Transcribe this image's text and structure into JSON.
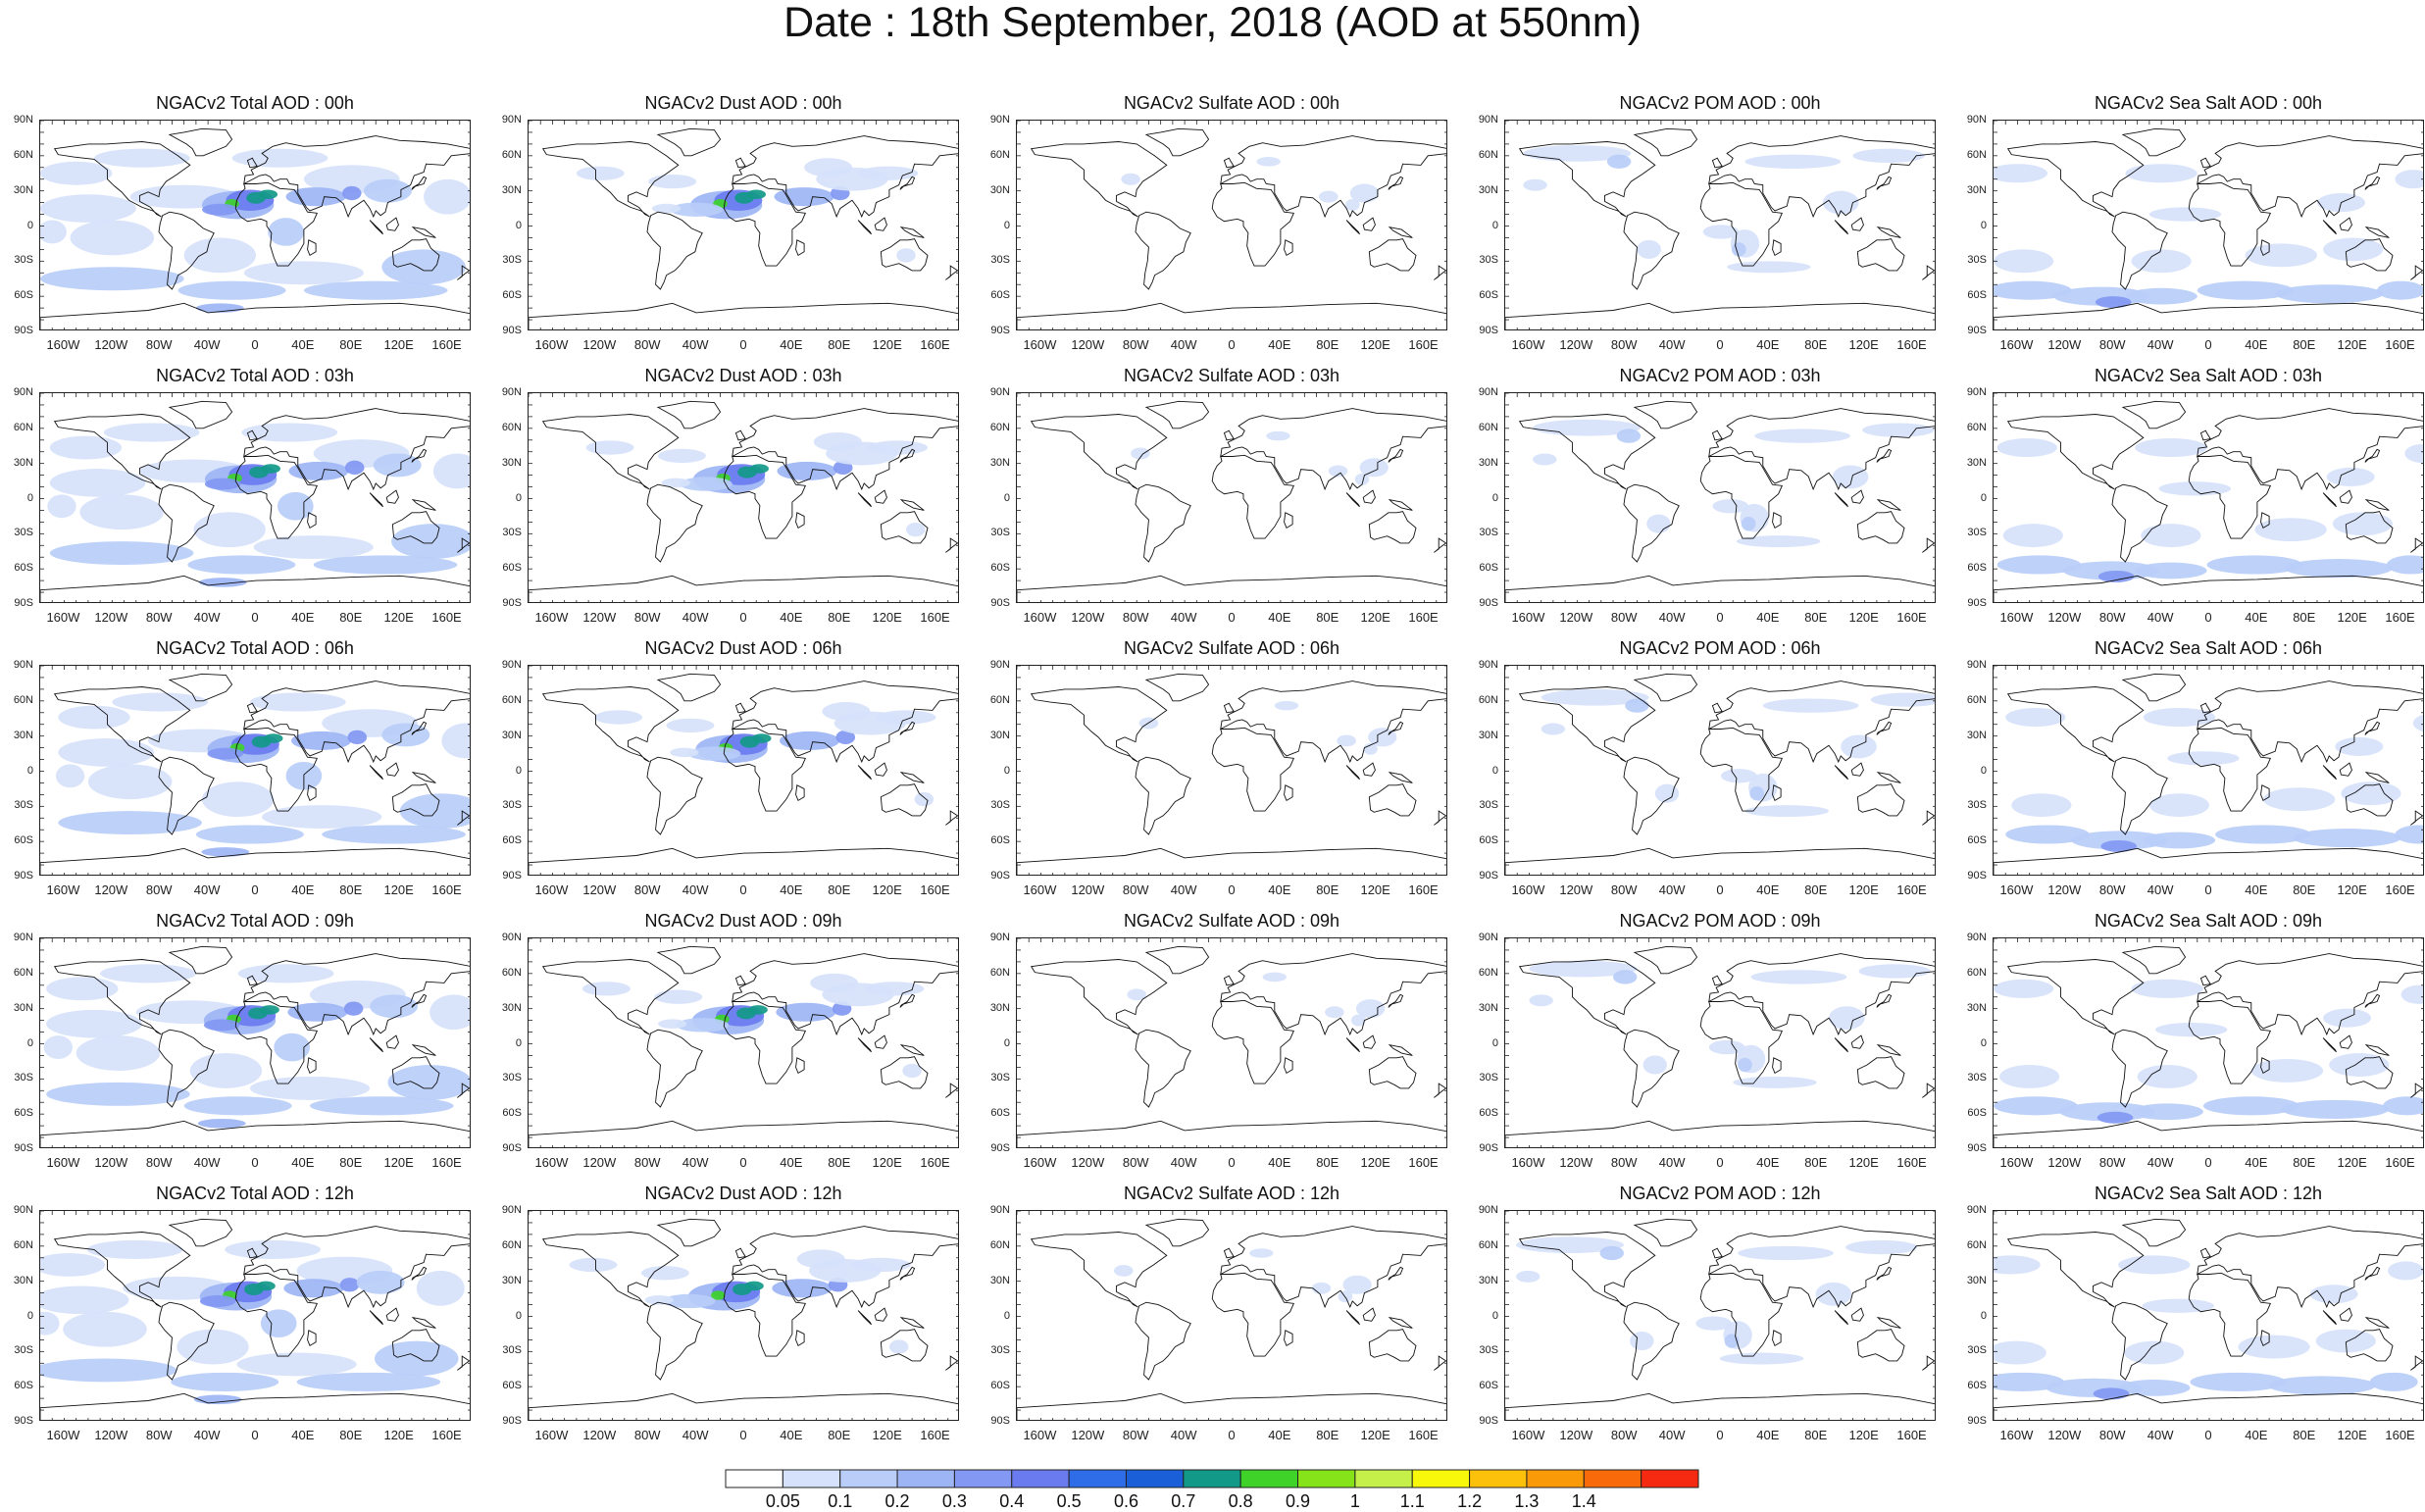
{
  "title": "Date : 18th September, 2018 (AOD at 550nm)",
  "lat_ticks": [
    "90N",
    "60N",
    "30N",
    "0",
    "30S",
    "60S",
    "90S"
  ],
  "lon_ticks": [
    "160W",
    "120W",
    "80W",
    "40W",
    "0",
    "40E",
    "80E",
    "120E",
    "160E"
  ],
  "columns": [
    {
      "species": "total",
      "titles": [
        "NGACv2 Total AOD : 00h",
        "NGACv2 Total AOD : 03h",
        "NGACv2 Total AOD : 06h",
        "NGACv2 Total AOD : 09h",
        "NGACv2 Total AOD  : 12h"
      ]
    },
    {
      "species": "dust",
      "titles": [
        "NGACv2 Dust AOD : 00h",
        "NGACv2 Dust AOD : 03h",
        "NGACv2 Dust AOD : 06h",
        "NGACv2 Dust AOD : 09h",
        "NGACv2 Dust AOD : 12h"
      ]
    },
    {
      "species": "sulfate",
      "titles": [
        "NGACv2 Sulfate AOD : 00h",
        "NGACv2 Sulfate AOD : 03h",
        "NGACv2 Sulfate AOD : 06h",
        "NGACv2 Sulfate AOD : 09h",
        "NGACv2 Sulfate AOD : 12h"
      ]
    },
    {
      "species": "pom",
      "titles": [
        "NGACv2 POM AOD : 00h",
        "NGACv2 POM AOD : 03h",
        "NGACv2 POM AOD : 06h",
        "NGACv2 POM AOD : 09h",
        "NGACv2 POM  AOD : 12h"
      ]
    },
    {
      "species": "seasalt",
      "titles": [
        "NGACv2 Sea Salt AOD : 00h",
        "NGACv2 Sea Salt AOD : 03h",
        "NGACv2 Sea Salt AOD : 06h",
        "NGACv2 Sea Salt  AOD : 09h",
        "NGACv2 Sea Salt AOD : 12h"
      ]
    }
  ],
  "colorbar": {
    "labels": [
      "0.05",
      "0.1",
      "0.2",
      "0.3",
      "0.4",
      "0.5",
      "0.6",
      "0.7",
      "0.8",
      "0.9",
      "1",
      "1.1",
      "1.2",
      "1.3",
      "1.4"
    ],
    "colors": [
      "#ffffff",
      "#d6e2fb",
      "#b9cdf8",
      "#9db5f5",
      "#8298f2",
      "#6a7bef",
      "#2f6de8",
      "#1a5ed8",
      "#129988",
      "#3fd32a",
      "#86e31a",
      "#c5f04a",
      "#f8f80a",
      "#fcc10a",
      "#fb9a08",
      "#f86a0a",
      "#f52a10"
    ]
  }
}
